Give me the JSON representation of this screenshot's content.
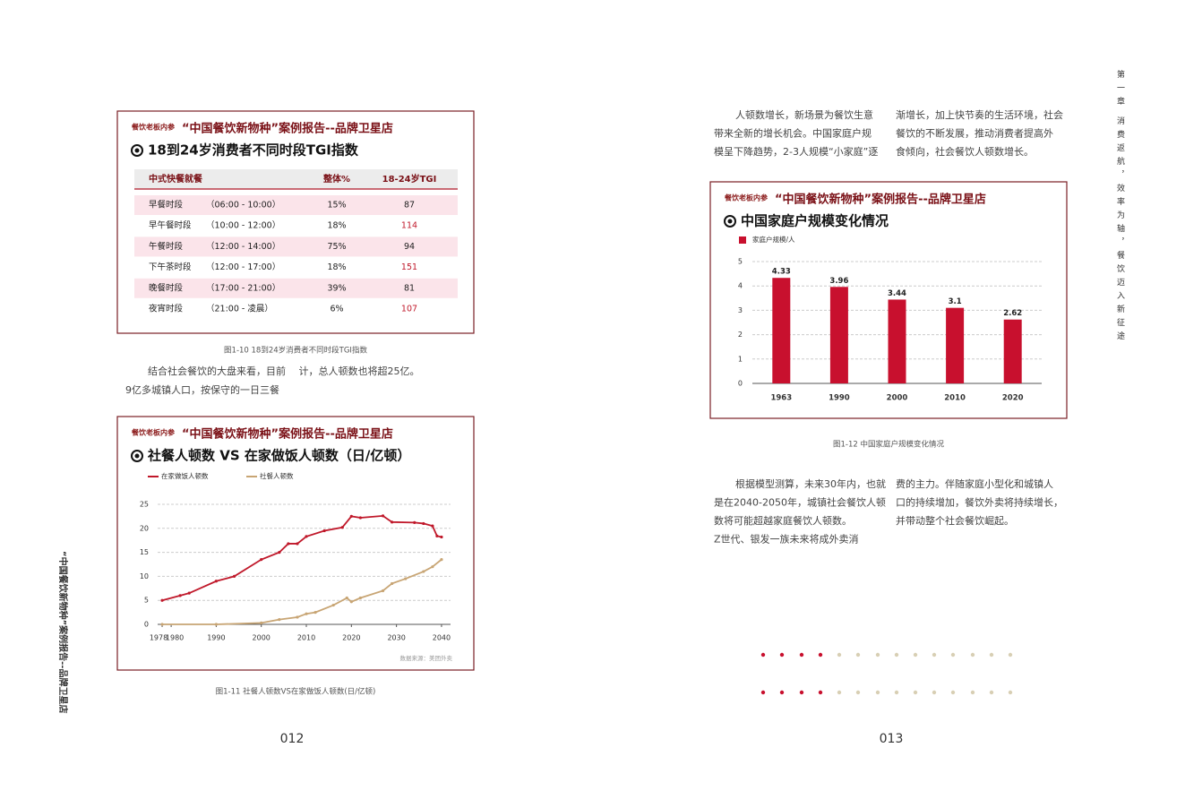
{
  "spine_left": "“中国餐饮新物种”案例报告--品牌卫星店",
  "spine_right": {
    "chapter": "第一章",
    "title": "消费返航，效率为轴，餐饮迈入新征途"
  },
  "page_numbers": [
    "012",
    "013"
  ],
  "table_panel": {
    "brand": "餐饮老板内参",
    "report": "“中国餐饮新物种”案例报告--品牌卫星店",
    "title": "18到24岁消费者不同时段TGI指数",
    "header": [
      "中式快餐就餐",
      "整体%",
      "18-24岁TGI"
    ],
    "rows": [
      [
        "早餐时段",
        "（06:00 - 10:00）",
        "15%",
        "87"
      ],
      [
        "早午餐时段",
        "（10:00 - 12:00）",
        "18%",
        "114"
      ],
      [
        "午餐时段",
        "（12:00 - 14:00）",
        "75%",
        "94"
      ],
      [
        "下午茶时段",
        "（12:00 - 17:00）",
        "18%",
        "151"
      ],
      [
        "晚餐时段",
        "（17:00 - 21:00）",
        "39%",
        "81"
      ],
      [
        "夜宵时段",
        "（21:00 - 凌晨）",
        "6%",
        "107"
      ]
    ],
    "caption": "图1-10 18到24岁消费者不同时段TGI指数"
  },
  "left_text": [
    "结合社会餐饮的大盘来看，目前　 计，总人顿数也将超25亿。",
    "9亿多城镇人口，按保守的一日三餐"
  ],
  "right_text_top": [
    [
      "人顿数增长，新场景为餐饮生意",
      "带来全新的增长机会。中国家庭户规",
      "模呈下降趋势，2-3人规模“小家庭”逐"
    ],
    [
      "渐增长，加上快节奏的生活环境，社会",
      "餐饮的不断发展，推动消费者提高外",
      "食倾向，社会餐饮人顿数增长。"
    ]
  ],
  "right_text_bottom": [
    [
      "根据模型测算，未来30年内，也就",
      "是在2040-2050年，城镇社会餐饮人顿",
      "数将可能超越家庭餐饮人顿数。",
      "Z世代、银发一族未来将成外卖消"
    ],
    [
      "费的主力。伴随家庭小型化和城镇人",
      "口的持续增加，餐饮外卖将持续增长，",
      "并带动整个社会餐饮崛起。"
    ]
  ],
  "chart_data": [
    {
      "type": "line",
      "brand": "餐饮老板内参",
      "report": "“中国餐饮新物种”案例报告--品牌卫星店",
      "title": "社餐人顿数 VS 在家做饭人顿数（日/亿顿）",
      "series": [
        {
          "name": "在家做饭人顿数",
          "color": "#c0182a",
          "x": [
            1978,
            1982,
            1984,
            1990,
            1994,
            2000,
            2004,
            2006,
            2008,
            2010,
            2014,
            2018,
            2020,
            2022,
            2027,
            2029,
            2034,
            2036,
            2038,
            2039,
            2040
          ],
          "values": [
            5,
            6,
            6.5,
            9,
            10,
            13.5,
            15,
            16.8,
            16.8,
            18.3,
            19.5,
            20.2,
            22.5,
            22.2,
            22.6,
            21.3,
            21.2,
            21,
            20.5,
            18.4,
            18.2
          ]
        },
        {
          "name": "社餐人顿数",
          "color": "#c8a574",
          "x": [
            1978,
            1990,
            2000,
            2004,
            2008,
            2010,
            2012,
            2016,
            2019,
            2020,
            2022,
            2027,
            2029,
            2032,
            2036,
            2038,
            2040
          ],
          "values": [
            0,
            0,
            0.3,
            1,
            1.5,
            2.2,
            2.5,
            4,
            5.5,
            4.7,
            5.5,
            7,
            8.5,
            9.5,
            11,
            12,
            13.5
          ]
        }
      ],
      "xlim": [
        1977,
        2042
      ],
      "xticks": [
        1978,
        1980,
        1990,
        2000,
        2010,
        2020,
        2030,
        2040
      ],
      "ylim": [
        0,
        25
      ],
      "yticks": [
        0,
        5,
        10,
        15,
        20,
        25
      ],
      "grid": true,
      "source": "数据来源：美团外卖",
      "caption": "图1-11 社餐人顿数VS在家做饭人顿数(日/亿顿)"
    },
    {
      "type": "bar",
      "brand": "餐饮老板内参",
      "report": "“中国餐饮新物种”案例报告--品牌卫星店",
      "title": "中国家庭户规模变化情况",
      "categories": [
        "1963",
        "1990",
        "2000",
        "2010",
        "2020"
      ],
      "series": [
        {
          "name": "家庭户规模/人",
          "color": "#c8102e",
          "values": [
            4.33,
            3.96,
            3.44,
            3.1,
            2.62
          ]
        }
      ],
      "ylim": [
        0,
        5
      ],
      "yticks": [
        0,
        1,
        2,
        3,
        4,
        5
      ],
      "grid": true,
      "caption": "图1-12 中国家庭户规模变化情况"
    }
  ]
}
